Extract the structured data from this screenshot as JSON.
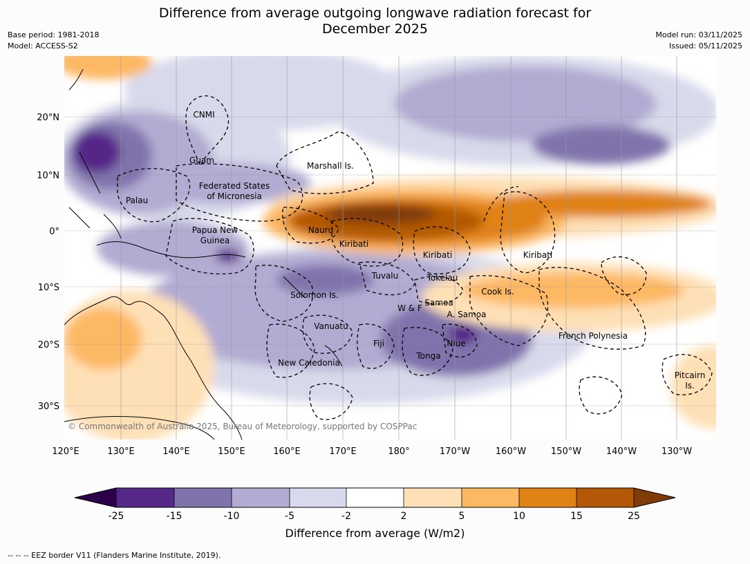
{
  "title_line1": "Difference from average outgoing longwave radiation forecast for",
  "title_line2": "December 2025",
  "meta_left": {
    "base_period": "Base period: 1981-2018",
    "model": "Model: ACCESS-S2"
  },
  "meta_right": {
    "model_run": "Model run: 03/11/2025",
    "issued": "Issued: 05/11/2025"
  },
  "lat_ticks": [
    "20°N",
    "10°N",
    "0°",
    "10°S",
    "20°S",
    "30°S"
  ],
  "lon_ticks": [
    "120°E",
    "130°E",
    "140°E",
    "150°E",
    "160°E",
    "170°E",
    "180°",
    "170°W",
    "160°W",
    "150°W",
    "140°W",
    "130°W"
  ],
  "region_labels": {
    "cnmi": "CNMI",
    "guam": "Guam",
    "marshall": "Marshall Is.",
    "fsm_1": "Federated States",
    "fsm_2": "of Micronesia",
    "palau": "Palau",
    "png_1": "Papua New",
    "png_2": "Guinea",
    "nauru": "Nauru",
    "kiribati_w": "Kiribati",
    "kiribati_c": "Kiribati",
    "kiribati_e": "Kiribati",
    "tuvalu": "Tuvalu",
    "tokelau": "Tokelau",
    "cook": "Cook Is.",
    "solomon": "Solomon Is.",
    "wf": "W & F",
    "samoa": "Samoa",
    "asamoa": "A. Samoa",
    "vanuatu": "Vanuatu",
    "fiji": "Fiji",
    "tonga": "Tonga",
    "niue": "Niue",
    "fp": "French Polynesia",
    "pitcairn_1": "Pitcairn",
    "pitcairn_2": "Is.",
    "newcal": "New Caledonia"
  },
  "copyright": "© Commonwealth of Australia 2025, Bureau of Meteorology, supported by COSPPac",
  "colorbar": {
    "ticks": [
      "-25",
      "-15",
      "-10",
      "-5",
      "-2",
      "2",
      "5",
      "10",
      "15",
      "25"
    ],
    "colors": {
      "under": "#2d004b",
      "n25_15": "#542788",
      "n15_10": "#8073ac",
      "n10_5": "#b2abd2",
      "n5_2": "#d8daeb",
      "n2_2": "#ffffff",
      "p2_5": "#fee0b6",
      "p5_10": "#fdb863",
      "p10_15": "#e08214",
      "p15_25": "#b35806",
      "over": "#7f3b08"
    },
    "title": "Difference from average (W/m2)"
  },
  "footer": "--  --  -- EEZ border V11 (Flanders Marine Institute, 2019)."
}
